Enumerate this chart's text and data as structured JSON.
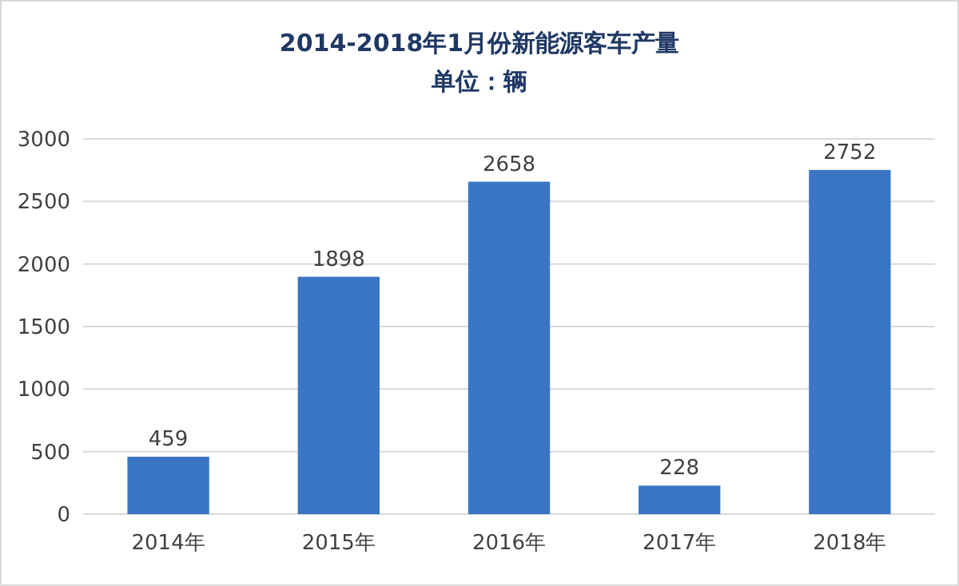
{
  "chart_data": {
    "type": "bar",
    "title": "2014-2018年1月份新能源客车产量",
    "subtitle": "单位：辆",
    "categories": [
      "2014年",
      "2015年",
      "2016年",
      "2017年",
      "2018年"
    ],
    "values": [
      459,
      1898,
      2658,
      228,
      2752
    ],
    "color": "#3a76c4",
    "ylim": [
      0,
      3000
    ],
    "yticks": [
      0,
      500,
      1000,
      1500,
      2000,
      2500,
      3000
    ],
    "grid": "y",
    "data_labels": true
  }
}
